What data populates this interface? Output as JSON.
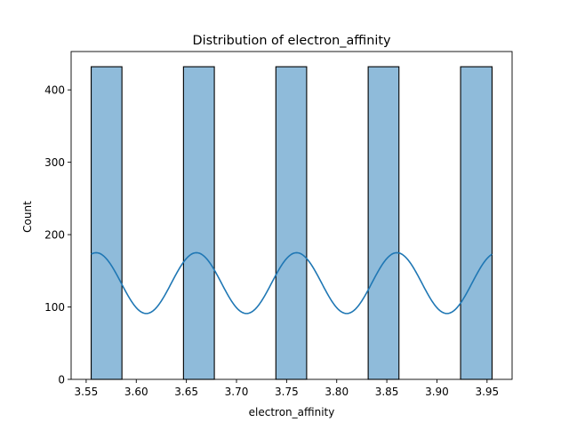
{
  "chart_data": {
    "type": "bar",
    "title": "Distribution of electron_affinity",
    "xlabel": "electron_affinity",
    "ylabel": "Count",
    "xlim": [
      3.535,
      3.975
    ],
    "ylim": [
      0,
      453
    ],
    "xticks": [
      "3.55",
      "3.60",
      "3.65",
      "3.70",
      "3.75",
      "3.80",
      "3.85",
      "3.90",
      "3.95"
    ],
    "xtick_values": [
      3.55,
      3.6,
      3.65,
      3.7,
      3.75,
      3.8,
      3.85,
      3.9,
      3.95
    ],
    "yticks": [
      "0",
      "100",
      "200",
      "300",
      "400"
    ],
    "ytick_values": [
      0,
      100,
      200,
      300,
      400
    ],
    "bins": [
      {
        "x0": 3.555,
        "x1": 3.5857,
        "count": 432
      },
      {
        "x0": 3.6471,
        "x1": 3.6779,
        "count": 432
      },
      {
        "x0": 3.7393,
        "x1": 3.77,
        "count": 432
      },
      {
        "x0": 3.8314,
        "x1": 3.8621,
        "count": 432
      },
      {
        "x0": 3.9236,
        "x1": 3.955,
        "count": 432
      }
    ],
    "kde": {
      "x_start": 3.555,
      "x_end": 3.955,
      "period": 0.1,
      "peak_x": 3.56,
      "max": 175,
      "min": 91
    },
    "grid": false,
    "legend": "none",
    "colors": {
      "bar_fill": "#8fbbda",
      "bar_edge": "#000000",
      "kde_line": "#1f77b4",
      "axis": "#000000"
    }
  }
}
